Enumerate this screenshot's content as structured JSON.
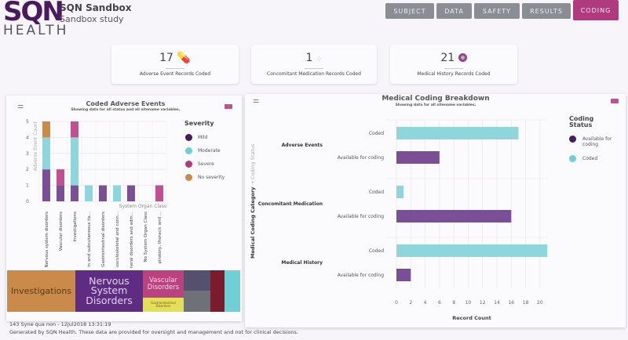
{
  "header": {
    "logo_top": "SQN",
    "logo_bottom": "HEALTH",
    "title": "SQN Sandbox",
    "subtitle": "Sandbox study",
    "nav": [
      {
        "label": "SUBJECT"
      },
      {
        "label": "DATA"
      },
      {
        "label": "SAFETY"
      },
      {
        "label": "RESULTS"
      },
      {
        "label": "CODING",
        "active": true
      }
    ]
  },
  "kpis": [
    {
      "value": "17",
      "label": "Adverse Event Records Coded",
      "icon": "pills-icon"
    },
    {
      "value": "1",
      "label": "Concomitant Medication Records Coded",
      "icon": "medication-icon"
    },
    {
      "value": "21",
      "label": "Medical History Records Coded",
      "icon": "history-icon"
    }
  ],
  "colors": {
    "mild": "#7b4f96",
    "moderate": "#8fd6dc",
    "severe": "#c0508f",
    "no_severity": "#c98a4a",
    "available": "#7b4f96",
    "coded": "#8fd6dc",
    "accent": "#b03a7e"
  },
  "chart_data": [
    {
      "type": "bar",
      "stacked": true,
      "title": "Coded Adverse Events",
      "subtitle": "Showing data for all status and all sitename variables.",
      "xlabel": "System Organ Class",
      "ylabel": "Adverse Event Count",
      "ylim": [
        0,
        5
      ],
      "yticks": [
        "0",
        "1",
        "2",
        "3",
        "4",
        "5"
      ],
      "grid": true,
      "legend_title": "Severity",
      "legend": "right",
      "categories": [
        "Nervous system disorders",
        "Vascular disorders",
        "Investigations",
        "Skin and subcutaneous tis...",
        "Gastrointestinal disorders",
        "Musculoskeletal and conn...",
        "General disorders and adm...",
        "No System Organ Class",
        "Respiratory, thoracic and ..."
      ],
      "series": [
        {
          "name": "Mild",
          "values": [
            2,
            1,
            1,
            0,
            1,
            0,
            1,
            0,
            0
          ]
        },
        {
          "name": "Moderate",
          "values": [
            2,
            0,
            3,
            1,
            0,
            1,
            0,
            0,
            0
          ]
        },
        {
          "name": "Severe",
          "values": [
            0,
            1,
            1,
            0,
            0,
            0,
            0,
            0,
            1
          ]
        },
        {
          "name": "No severity",
          "values": [
            1,
            0,
            0,
            0,
            0,
            0,
            0,
            0,
            0
          ]
        }
      ]
    },
    {
      "type": "bar",
      "orientation": "horizontal",
      "title": "Medical Coding Breakdown",
      "subtitle": "Showing data for all sitename variables.",
      "xlabel": "Record Count",
      "ylabel": "Medical Coding Category",
      "ylabel2": "Coding Status",
      "xlim": [
        0,
        21
      ],
      "xticks": [
        "0",
        "2",
        "4",
        "6",
        "8",
        "10",
        "12",
        "14",
        "16",
        "18",
        "20"
      ],
      "grid": true,
      "legend_title": "Coding Status",
      "legend": "right",
      "groups": [
        {
          "name": "Adverse Events",
          "bars": [
            {
              "status": "Coded",
              "value": 17
            },
            {
              "status": "Available for coding",
              "value": 6
            }
          ]
        },
        {
          "name": "Concomitant Medication",
          "bars": [
            {
              "status": "Coded",
              "value": 1
            },
            {
              "status": "Available for coding",
              "value": 16
            }
          ]
        },
        {
          "name": "Medical History",
          "bars": [
            {
              "status": "Coded",
              "value": 21
            },
            {
              "status": "Available for coding",
              "value": 2
            }
          ]
        }
      ],
      "legend_items": [
        "Available for coding",
        "Coded"
      ]
    }
  ],
  "treemap": [
    {
      "label": "Investigations",
      "color": "#c98a4a"
    },
    {
      "label": "Nervous System Disorders",
      "color": "#5e2d82"
    },
    {
      "label": "Vascular Disorders",
      "color": "#b8437f"
    },
    {
      "label": "Gastrointestinal Disorders",
      "color": "#e2e05a"
    },
    {
      "label": "",
      "color": "#55506e"
    },
    {
      "label": "",
      "color": "#6e7178"
    },
    {
      "label": "",
      "color": "#7a1c2c"
    },
    {
      "label": "",
      "color": "#6ecfd4"
    }
  ],
  "footer": {
    "line1": "143 Syne qua non - 12Jul2018 13:31:19",
    "line2": "Generated by SQN Health. These data are provided for oversight and management and not for clinical decisions."
  }
}
